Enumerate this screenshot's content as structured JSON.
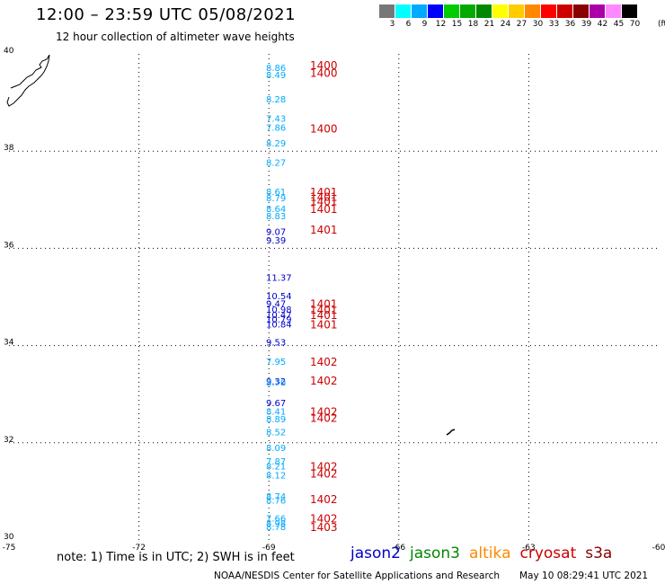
{
  "title": "12:00 – 23:59 UTC 05/08/2021",
  "subtitle": "12 hour collection of altimeter wave heights",
  "color_scale": {
    "unit": "(ft)",
    "swatches": [
      {
        "label": "3",
        "color": "#777777"
      },
      {
        "label": "6",
        "color": "#00ffff"
      },
      {
        "label": "9",
        "color": "#00aaff"
      },
      {
        "label": "12",
        "color": "#0000ff"
      },
      {
        "label": "15",
        "color": "#00cc00"
      },
      {
        "label": "18",
        "color": "#00aa00"
      },
      {
        "label": "21",
        "color": "#008800"
      },
      {
        "label": "24",
        "color": "#ffff00"
      },
      {
        "label": "27",
        "color": "#ffcc00"
      },
      {
        "label": "30",
        "color": "#ff8800"
      },
      {
        "label": "33",
        "color": "#ff0000"
      },
      {
        "label": "36",
        "color": "#cc0000"
      },
      {
        "label": "39",
        "color": "#880000"
      },
      {
        "label": "42",
        "color": "#aa00aa"
      },
      {
        "label": "45",
        "color": "#ff88ff"
      },
      {
        "label": "70",
        "color": "#000000"
      }
    ]
  },
  "axes": {
    "lon_labels": [
      "-75",
      "-72",
      "-69",
      "-66",
      "-63",
      "-60"
    ],
    "lat_labels": [
      "30",
      "32",
      "34",
      "36",
      "38",
      "40"
    ]
  },
  "legend": {
    "note": "note:  1) Time is in UTC;  2) SWH is in feet",
    "satellites": [
      {
        "name": "jason2",
        "color": "#0000cc"
      },
      {
        "name": "jason3",
        "color": "#008800"
      },
      {
        "name": "altika",
        "color": "#ff8800"
      },
      {
        "name": "cryosat",
        "color": "#cc0000"
      },
      {
        "name": "s3a",
        "color": "#880000"
      }
    ]
  },
  "footer": {
    "center": "NOAA/NESDIS Center for Satellite Applications and Research",
    "timestamp": "May 10 08:29:41 UTC 2021"
  },
  "observations": [
    {
      "lat": 39.65,
      "swh": "8.86",
      "color": "#00aaff"
    },
    {
      "lat": 39.5,
      "swh": "8.49",
      "color": "#00aaff"
    },
    {
      "lat": 39.0,
      "swh": "8.28",
      "color": "#00aaff"
    },
    {
      "lat": 38.6,
      "swh": "7.43",
      "color": "#00aaff"
    },
    {
      "lat": 38.42,
      "swh": "7.86",
      "color": "#00aaff"
    },
    {
      "lat": 38.1,
      "swh": "8.29",
      "color": "#00aaff"
    },
    {
      "lat": 37.7,
      "swh": "8.27",
      "color": "#00aaff"
    },
    {
      "lat": 37.1,
      "swh": "8.61",
      "color": "#00aaff"
    },
    {
      "lat": 36.97,
      "swh": "8.79",
      "color": "#00aaff"
    },
    {
      "lat": 36.75,
      "swh": "8.64",
      "color": "#00aaff"
    },
    {
      "lat": 36.6,
      "swh": "8.83",
      "color": "#00aaff"
    },
    {
      "lat": 36.28,
      "swh": "9.07",
      "color": "#0000cc"
    },
    {
      "lat": 36.1,
      "swh": "9.39",
      "color": "#0000cc"
    },
    {
      "lat": 35.33,
      "swh": "11.37",
      "color": "#0000cc"
    },
    {
      "lat": 34.95,
      "swh": "10.54",
      "color": "#0000cc"
    },
    {
      "lat": 34.8,
      "swh": "9.47",
      "color": "#0000cc"
    },
    {
      "lat": 34.68,
      "swh": "10.98",
      "color": "#0000cc"
    },
    {
      "lat": 34.57,
      "swh": "10.47",
      "color": "#0000cc"
    },
    {
      "lat": 34.47,
      "swh": "10.79",
      "color": "#0000cc"
    },
    {
      "lat": 34.37,
      "swh": "10.84",
      "color": "#0000cc"
    },
    {
      "lat": 34.0,
      "swh": "9.53",
      "color": "#0000cc"
    },
    {
      "lat": 33.6,
      "swh": "7.95",
      "color": "#00aaff"
    },
    {
      "lat": 33.2,
      "swh": "9.32",
      "color": "#0000cc"
    },
    {
      "lat": 33.17,
      "swh": "8.70",
      "color": "#00aaff"
    },
    {
      "lat": 32.75,
      "swh": "9.67",
      "color": "#0000cc"
    },
    {
      "lat": 32.58,
      "swh": "8.41",
      "color": "#00aaff"
    },
    {
      "lat": 32.42,
      "swh": "8.89",
      "color": "#00aaff"
    },
    {
      "lat": 32.15,
      "swh": "8.52",
      "color": "#00aaff"
    },
    {
      "lat": 31.83,
      "swh": "8.09",
      "color": "#00aaff"
    },
    {
      "lat": 31.55,
      "swh": "7.87",
      "color": "#00aaff"
    },
    {
      "lat": 31.45,
      "swh": "8.21",
      "color": "#00aaff"
    },
    {
      "lat": 31.27,
      "swh": "8.12",
      "color": "#00aaff"
    },
    {
      "lat": 30.83,
      "swh": "8.74",
      "color": "#00aaff"
    },
    {
      "lat": 30.75,
      "swh": "8.76",
      "color": "#00aaff"
    },
    {
      "lat": 30.38,
      "swh": "7.66",
      "color": "#00aaff"
    },
    {
      "lat": 30.28,
      "swh": "8.98",
      "color": "#00aaff"
    },
    {
      "lat": 30.2,
      "swh": "8.78",
      "color": "#00aaff"
    }
  ],
  "time_labels": [
    {
      "lat": 39.7,
      "text": "1400"
    },
    {
      "lat": 39.55,
      "text": "1400"
    },
    {
      "lat": 38.4,
      "text": "1400"
    },
    {
      "lat": 37.1,
      "text": "1401"
    },
    {
      "lat": 37.0,
      "text": "1401"
    },
    {
      "lat": 36.9,
      "text": "1401"
    },
    {
      "lat": 36.75,
      "text": "1401"
    },
    {
      "lat": 36.32,
      "text": "1401"
    },
    {
      "lat": 34.8,
      "text": "1401"
    },
    {
      "lat": 34.68,
      "text": "1401"
    },
    {
      "lat": 34.57,
      "text": "1401"
    },
    {
      "lat": 34.37,
      "text": "1401"
    },
    {
      "lat": 33.6,
      "text": "1402"
    },
    {
      "lat": 33.22,
      "text": "1402"
    },
    {
      "lat": 32.58,
      "text": "1402"
    },
    {
      "lat": 32.45,
      "text": "1402"
    },
    {
      "lat": 31.45,
      "text": "1402"
    },
    {
      "lat": 31.3,
      "text": "1402"
    },
    {
      "lat": 30.78,
      "text": "1402"
    },
    {
      "lat": 30.38,
      "text": "1402"
    },
    {
      "lat": 30.2,
      "text": "1403"
    }
  ]
}
